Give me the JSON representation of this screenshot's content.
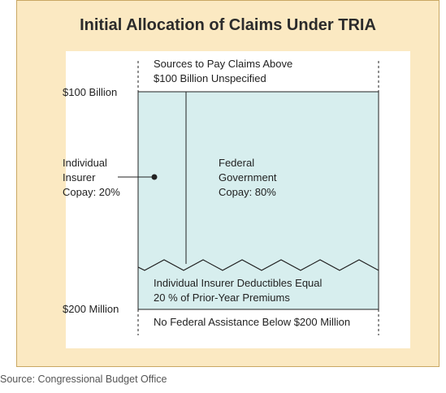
{
  "title": "Initial Allocation of Claims Under TRIA",
  "labels": {
    "above": [
      "Sources to Pay Claims Above",
      "$100 Billion Unspecified"
    ],
    "top_threshold": "$100 Billion",
    "bottom_threshold": "$200 Million",
    "insurer_copay": [
      "Individual",
      "Insurer",
      "Copay: 20%"
    ],
    "federal_copay": [
      "Federal",
      "Government",
      "Copay: 80%"
    ],
    "deductibles": [
      "Individual Insurer Deductibles Equal",
      "20 % of Prior-Year Premiums"
    ],
    "below": "No Federal Assistance Below $200 Million"
  },
  "source": "Source: Congressional Budget Office",
  "colors": {
    "frame": "#fbe9c2",
    "fill": "#d7eeee",
    "line": "#222222"
  }
}
